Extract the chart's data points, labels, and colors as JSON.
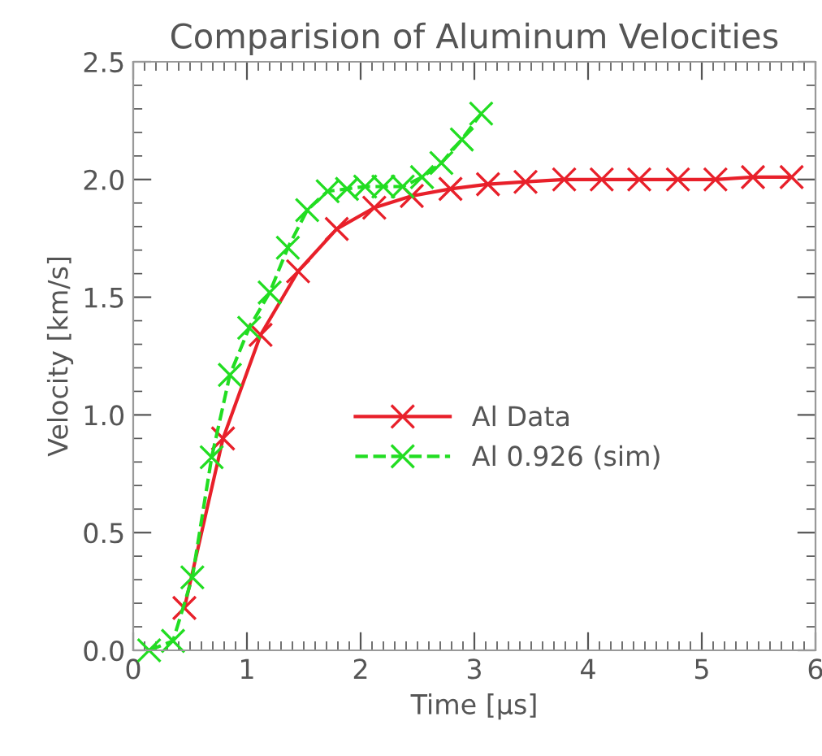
{
  "chart_data": {
    "type": "line",
    "title": "Comparision of Aluminum Velocities",
    "xlabel": "Time [μs]",
    "ylabel": "Velocity [km/s]",
    "xlim": [
      0,
      6
    ],
    "ylim": [
      0,
      2.5
    ],
    "xticks": [
      0,
      1,
      2,
      3,
      4,
      5,
      6
    ],
    "yticks": [
      {
        "value": 0,
        "label": "0.0"
      },
      {
        "value": 0.5,
        "label": "0.5"
      },
      {
        "value": 1,
        "label": "1.0"
      },
      {
        "value": 1.5,
        "label": "1.5"
      },
      {
        "value": 2,
        "label": "2.0"
      },
      {
        "value": 2.5,
        "label": "2.5"
      }
    ],
    "grid": false,
    "legend": "center",
    "series": [
      {
        "name": "Al Data",
        "color": "#e8202a",
        "marker": "cross",
        "line_style": "solid",
        "x": [
          0.45,
          0.79,
          1.12,
          1.45,
          1.79,
          2.12,
          2.45,
          2.79,
          3.12,
          3.45,
          3.79,
          4.12,
          4.45,
          4.79,
          5.12,
          5.45,
          5.79
        ],
        "values": [
          0.18,
          0.9,
          1.34,
          1.61,
          1.79,
          1.88,
          1.93,
          1.96,
          1.98,
          1.99,
          2.0,
          2.0,
          2.0,
          2.0,
          2.0,
          2.01,
          2.01
        ]
      },
      {
        "name": "Al 0.926 (sim)",
        "color": "#22dd22",
        "marker": "cross",
        "line_style": "dashed",
        "x": [
          0.14,
          0.35,
          0.52,
          0.69,
          0.85,
          1.02,
          1.2,
          1.36,
          1.53,
          1.71,
          1.88,
          2.04,
          2.2,
          2.37,
          2.54,
          2.71,
          2.89,
          3.06
        ],
        "values": [
          0.0,
          0.04,
          0.31,
          0.82,
          1.17,
          1.37,
          1.52,
          1.71,
          1.87,
          1.95,
          1.96,
          1.97,
          1.97,
          1.97,
          2.01,
          2.07,
          2.17,
          2.28
        ]
      }
    ]
  }
}
